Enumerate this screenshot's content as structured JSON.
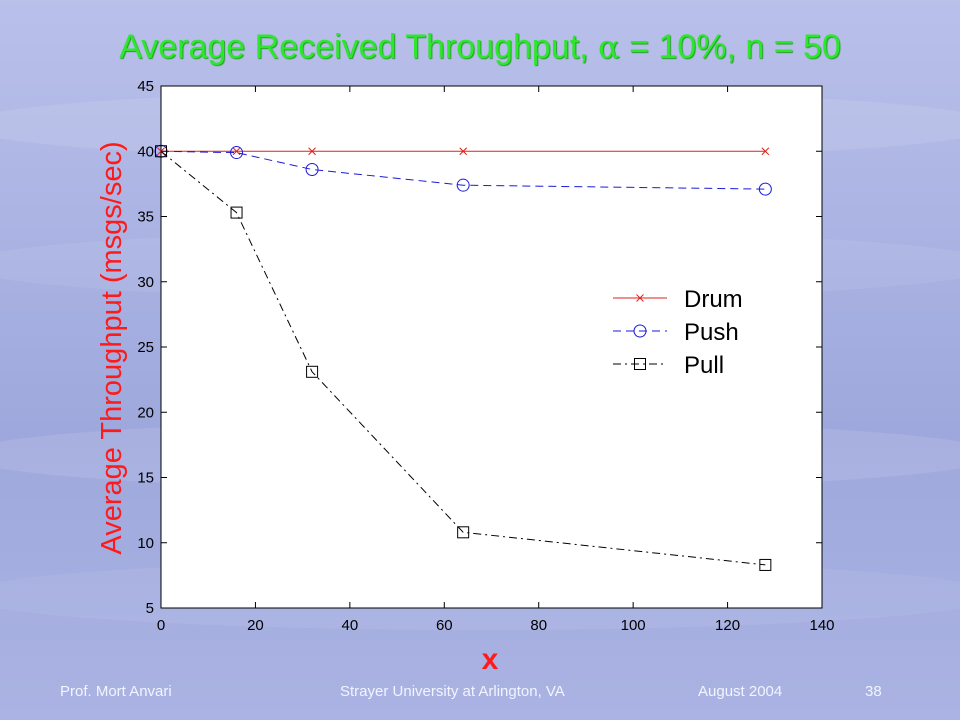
{
  "slide": {
    "title": {
      "prefix": "Average Received Throughput, ",
      "alpha_symbol": "α",
      "suffix": " = 10%, n = 50"
    },
    "footer": {
      "author": "Prof. Mort Anvari",
      "institution": "Strayer University at Arlington, VA",
      "date": "August 2004",
      "page": "38"
    }
  },
  "chart_data": {
    "type": "line",
    "title": "Average Received Throughput, α = 10%, n = 50",
    "xlabel": "x",
    "ylabel": "Average Throughput (msgs/sec)",
    "xlim": [
      0,
      140
    ],
    "ylim": [
      5,
      45
    ],
    "xticks": [
      0,
      20,
      40,
      60,
      80,
      100,
      120,
      140
    ],
    "yticks": [
      5,
      10,
      15,
      20,
      25,
      30,
      35,
      40,
      45
    ],
    "grid": false,
    "legend_position": "right",
    "series": [
      {
        "name": "Drum",
        "color": "#e0201c",
        "marker": "x",
        "dash": "solid",
        "x": [
          0,
          16,
          32,
          64,
          128
        ],
        "y": [
          40,
          40,
          40,
          40,
          40
        ]
      },
      {
        "name": "Push",
        "color": "#1a1ad8",
        "marker": "circle",
        "dash": "dashed",
        "x": [
          0,
          16,
          32,
          64,
          128
        ],
        "y": [
          40,
          39.9,
          38.6,
          37.4,
          37.1
        ]
      },
      {
        "name": "Pull",
        "color": "#000000",
        "marker": "square",
        "dash": "dashdot",
        "x": [
          0,
          16,
          32,
          64,
          128
        ],
        "y": [
          40,
          35.3,
          23.1,
          10.8,
          8.3
        ]
      }
    ]
  }
}
